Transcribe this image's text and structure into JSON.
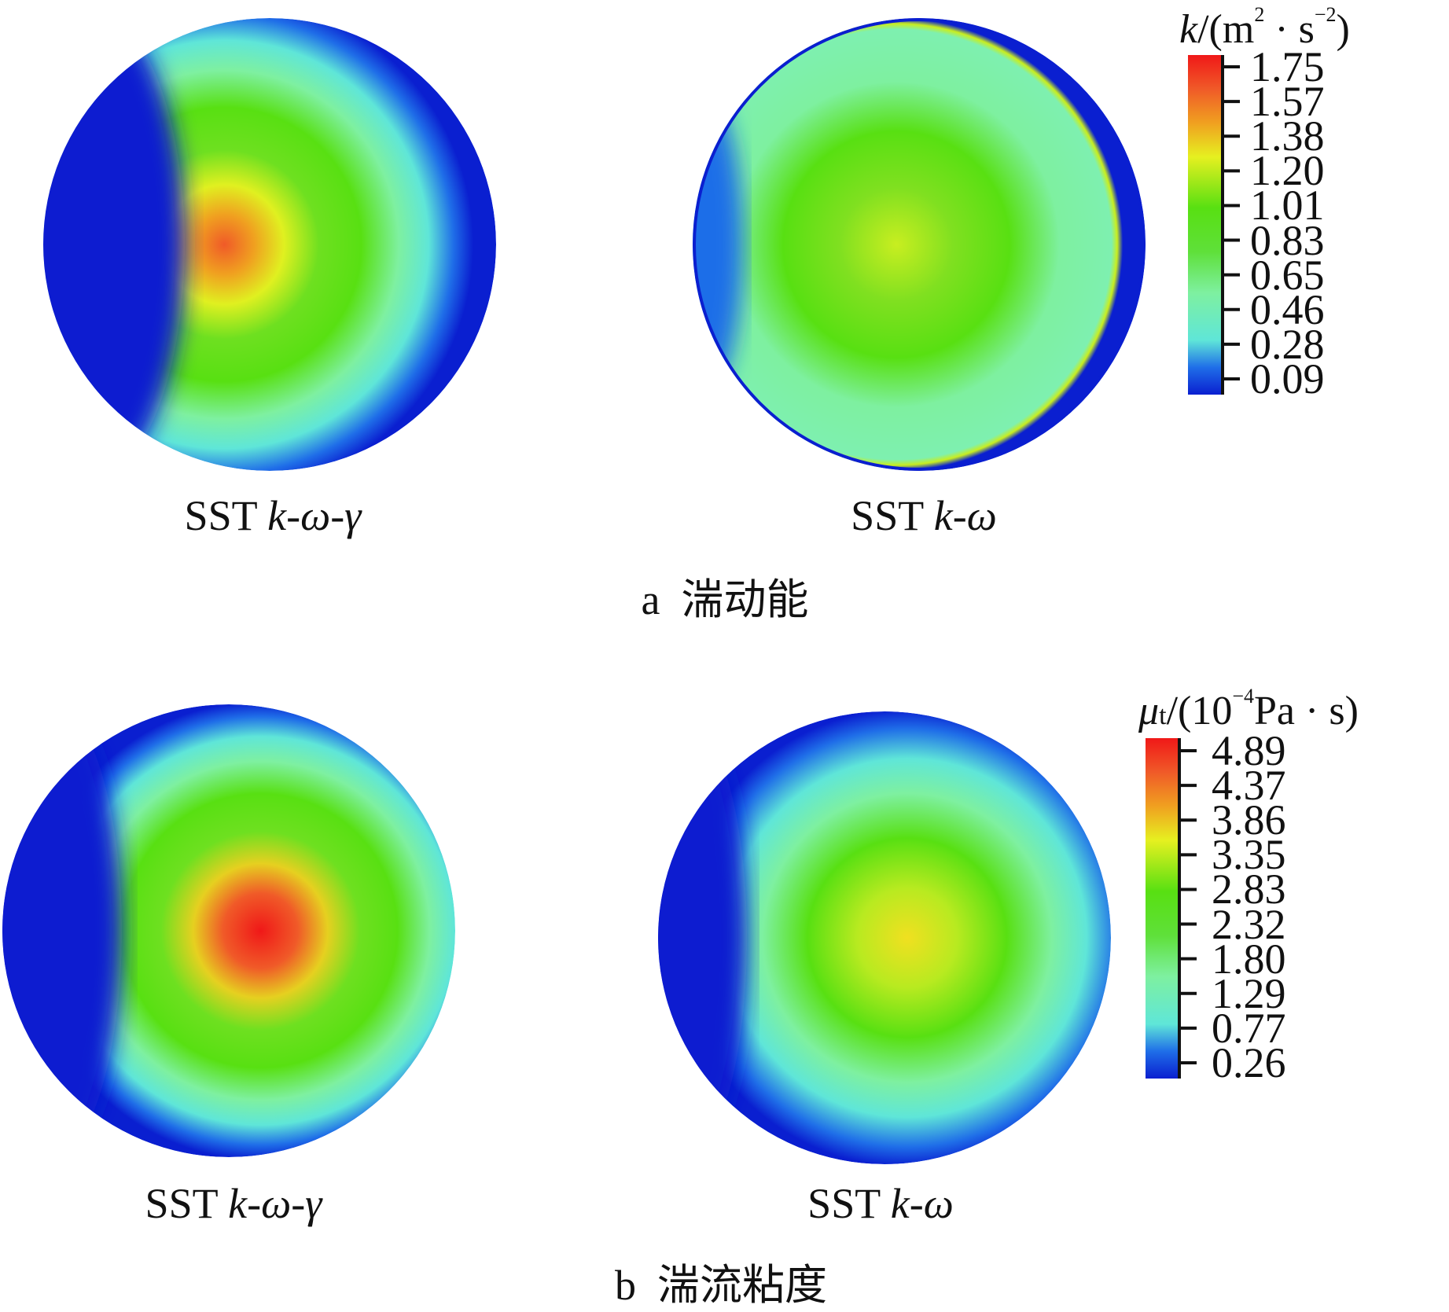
{
  "chart_data": [
    {
      "type": "heatmap",
      "subtitle_label": "a",
      "subtitle_text": "湍动能",
      "colorbar": {
        "title_var": "k",
        "title_unit_prefix": "/(m",
        "title_sup1": "2",
        "title_mid": " · s",
        "title_sup2": "−2",
        "title_end": ")",
        "ticks": [
          "1.75",
          "1.57",
          "1.38",
          "1.20",
          "1.01",
          "0.83",
          "0.65",
          "0.46",
          "0.28",
          "0.09"
        ],
        "range": [
          0.09,
          1.75
        ]
      },
      "panels": [
        {
          "prefix": "SST ",
          "model": "k-ω-γ",
          "peak_value_approx": 1.6
        },
        {
          "prefix": "SST ",
          "model": "k-ω",
          "peak_value_approx": 1.3
        }
      ]
    },
    {
      "type": "heatmap",
      "subtitle_label": "b",
      "subtitle_text": "湍流粘度",
      "colorbar": {
        "title_var": "μ",
        "title_sub": "t",
        "title_unit_prefix": "/(10",
        "title_sup1": "−4",
        "title_mid": "Pa · s",
        "title_end": ")",
        "ticks": [
          "4.89",
          "4.37",
          "3.86",
          "3.35",
          "2.83",
          "2.32",
          "1.80",
          "1.29",
          "0.77",
          "0.26"
        ],
        "range": [
          0.26,
          4.89
        ]
      },
      "panels": [
        {
          "prefix": "SST ",
          "model": "k-ω-γ",
          "peak_value_approx": 4.7
        },
        {
          "prefix": "SST ",
          "model": "k-ω",
          "peak_value_approx": 3.7
        }
      ]
    }
  ],
  "colors": {
    "low": "#0a1fd0",
    "high": "#f01818"
  }
}
